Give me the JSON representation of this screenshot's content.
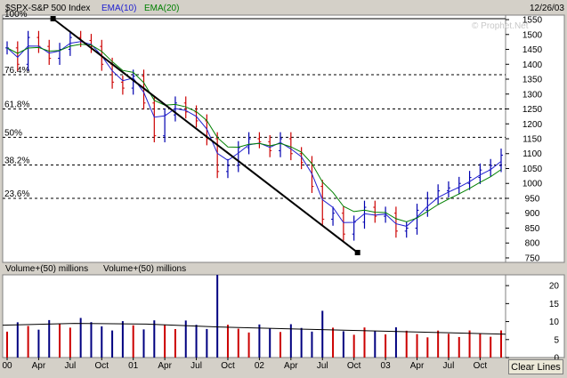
{
  "header": {
    "symbol": "$SPX-S&P 500 Index",
    "ema10_label": "EMA(10)",
    "ema20_label": "EMA(20)",
    "date": "12/26/03",
    "watermark": "© Prophet.Net"
  },
  "volume_header": {
    "label1": "Volume+(50) millions",
    "label2": "Volume+(50) millions"
  },
  "clear_button": "Clear Lines",
  "colors": {
    "background": "#ffffff",
    "frame": "#d4d0c8",
    "price_bar": "#000000",
    "ema10": "#2020d0",
    "ema20": "#008000",
    "fib_line": "#000000",
    "trend_line": "#000000",
    "volume_up": "#cc0000",
    "volume_down": "#000080",
    "volume_avg": "#000000"
  },
  "chart_data": [
    {
      "type": "line",
      "title": "$SPX-S&P 500 Index",
      "x_ticks": [
        "00",
        "Apr",
        "Jul",
        "Oct",
        "01",
        "Apr",
        "Jul",
        "Oct",
        "02",
        "Apr",
        "Jul",
        "Oct",
        "03",
        "Apr",
        "Jul",
        "Oct"
      ],
      "y_ticks": [
        750,
        800,
        850,
        900,
        950,
        1000,
        1050,
        1100,
        1150,
        1200,
        1250,
        1300,
        1350,
        1400,
        1450,
        1500,
        1550
      ],
      "ylim": [
        735,
        1565
      ],
      "grid": false,
      "series": [
        {
          "name": "EMA(10)"
        },
        {
          "name": "EMA(20)"
        }
      ],
      "close_points": [
        [
          "00",
          1455
        ],
        [
          "00 Feb",
          1400
        ],
        [
          "00 Mar",
          1490
        ],
        [
          "Apr",
          1460
        ],
        [
          "May",
          1420
        ],
        [
          "Jun",
          1450
        ],
        [
          "Jul",
          1490
        ],
        [
          "Aug",
          1480
        ],
        [
          "Sep",
          1460
        ],
        [
          "Oct",
          1400
        ],
        [
          "Nov",
          1340
        ],
        [
          "Dec",
          1320
        ],
        [
          "01",
          1360
        ],
        [
          "01 Feb",
          1270
        ],
        [
          "01 Mar",
          1160
        ],
        [
          "Apr",
          1230
        ],
        [
          "May",
          1270
        ],
        [
          "Jun",
          1240
        ],
        [
          "Jul",
          1210
        ],
        [
          "Aug",
          1150
        ],
        [
          "Sep",
          1040
        ],
        [
          "Oct",
          1060
        ],
        [
          "Nov",
          1120
        ],
        [
          "Dec",
          1150
        ],
        [
          "02",
          1140
        ],
        [
          "02 Feb",
          1110
        ],
        [
          "02 Mar",
          1150
        ],
        [
          "Apr",
          1100
        ],
        [
          "May",
          1070
        ],
        [
          "Jun",
          990
        ],
        [
          "Jul",
          880
        ],
        [
          "Aug",
          900
        ],
        [
          "Sep",
          830
        ],
        [
          "Oct",
          870
        ],
        [
          "Nov",
          920
        ],
        [
          "Dec",
          890
        ],
        [
          "03",
          900
        ],
        [
          "03 Feb",
          840
        ],
        [
          "03 Mar",
          850
        ],
        [
          "Apr",
          910
        ],
        [
          "May",
          950
        ],
        [
          "Jun",
          975
        ],
        [
          "Jul",
          985
        ],
        [
          "Aug",
          1000
        ],
        [
          "Sep",
          1020
        ],
        [
          "Oct",
          1045
        ],
        [
          "Nov",
          1060
        ],
        [
          "Dec",
          1095
        ]
      ],
      "fib_levels": [
        {
          "label": "100%",
          "value": 1553
        },
        {
          "label": "76.4%",
          "value": 1365
        },
        {
          "label": "61.8%",
          "value": 1250
        },
        {
          "label": "50%",
          "value": 1155
        },
        {
          "label": "38.2%",
          "value": 1062
        },
        {
          "label": "23.6%",
          "value": 950
        }
      ],
      "trend_line": {
        "start": [
          "00 Mar",
          1553
        ],
        "end": [
          "Oct 02",
          768
        ]
      }
    },
    {
      "type": "bar",
      "title": "Volume+(50) millions",
      "y_ticks": [
        0,
        5,
        10,
        15,
        20
      ],
      "ylim": [
        0,
        23
      ],
      "volume_average_points": [
        [
          "00",
          9
        ],
        [
          "Oct",
          9.5
        ],
        [
          "01",
          9.3
        ],
        [
          "Jul",
          8.5
        ],
        [
          "02",
          8
        ],
        [
          "Jul",
          7.5
        ],
        [
          "03",
          7
        ],
        [
          "Oct",
          6.5
        ]
      ],
      "notable_spikes": [
        {
          "x": "Sep 01",
          "value": 23
        },
        {
          "x": "Jul 02",
          "value": 13
        }
      ]
    }
  ]
}
